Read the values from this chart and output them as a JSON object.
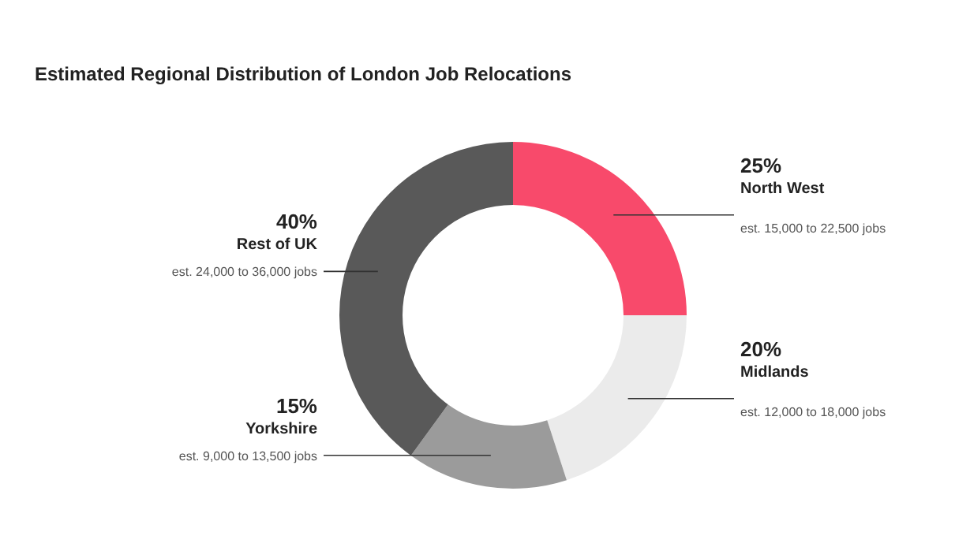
{
  "chart_data": {
    "type": "donut",
    "title": "Estimated Regional Distribution of London Job Relocations",
    "categories": [
      "North West",
      "Midlands",
      "Yorkshire",
      "Rest of UK"
    ],
    "values": [
      25,
      20,
      15,
      40
    ],
    "colors": [
      "#f84a6b",
      "#ebebeb",
      "#9b9b9b",
      "#595959"
    ],
    "value_labels": [
      "25%",
      "20%",
      "15%",
      "40%"
    ],
    "annotations": [
      "est. 15,000 to 22,500 jobs",
      "est. 12,000 to 18,000 jobs",
      "est. 9,000 to 13,500 jobs",
      "est. 24,000 to 36,000 jobs"
    ],
    "legend": false
  }
}
